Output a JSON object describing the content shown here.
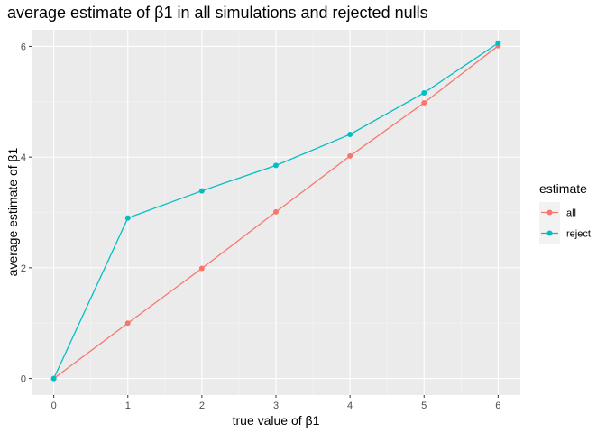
{
  "chart_data": {
    "type": "line",
    "title": "average estimate of β1 in all simulations and rejected nulls",
    "xlabel": "true value of β1",
    "ylabel": "average estimate of β1",
    "x": [
      0,
      1,
      2,
      3,
      4,
      5,
      6
    ],
    "xlim": [
      -0.3,
      6.3
    ],
    "ylim": [
      -0.3,
      6.3
    ],
    "xticks": [
      "0",
      "1",
      "2",
      "3",
      "4",
      "5",
      "6"
    ],
    "yticks": [
      "0",
      "2",
      "4",
      "6"
    ],
    "grid": true,
    "legend": {
      "title": "estimate",
      "position": "right"
    },
    "series": [
      {
        "name": "all",
        "color": "#F8766D",
        "values": [
          0.0,
          1.0,
          1.99,
          3.01,
          4.02,
          4.98,
          6.01
        ]
      },
      {
        "name": "reject",
        "color": "#00BFC4",
        "values": [
          0.0,
          2.9,
          3.39,
          3.85,
          4.41,
          5.16,
          6.06
        ]
      }
    ]
  }
}
